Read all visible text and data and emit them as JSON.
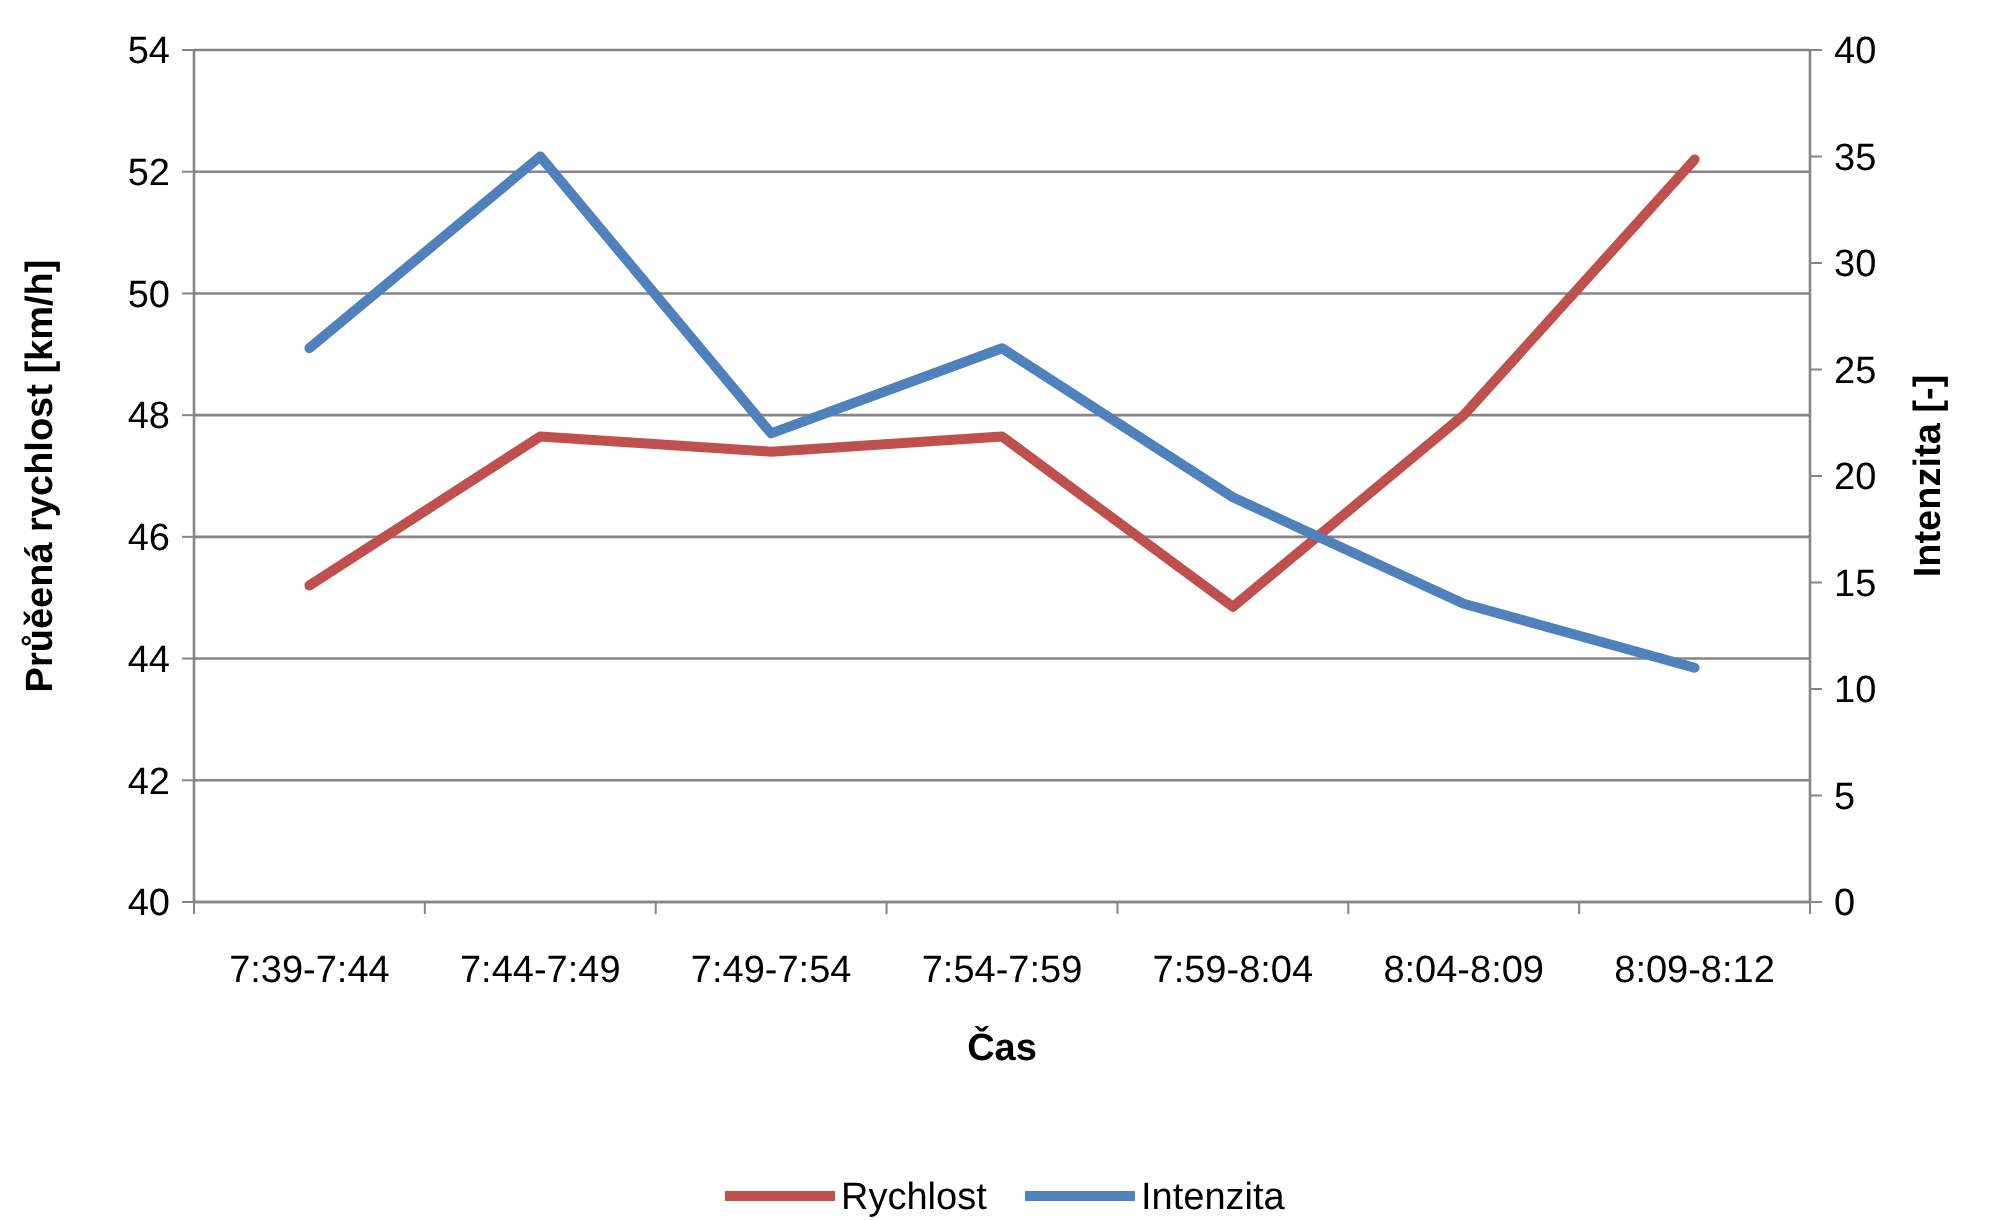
{
  "chart_data": {
    "type": "line",
    "xlabel": "Čas",
    "ylabel": "Průěená rychlost [km/h]",
    "y2label": "Intenzita [-]",
    "categories": [
      "7:39-7:44",
      "7:44-7:49",
      "7:49-7:54",
      "7:54-7:59",
      "7:59-8:04",
      "8:04-8:09",
      "8:09-8:12"
    ],
    "series": [
      {
        "name": "Rychlost",
        "color": "#c0504d",
        "values": [
          45.2,
          47.65,
          47.4,
          47.65,
          44.85,
          48.0,
          52.2
        ]
      },
      {
        "name": "Intenzita",
        "color": "#4f81bd",
        "axis": "y2",
        "values": [
          26,
          35,
          22,
          26,
          19,
          14,
          11
        ]
      }
    ],
    "ylim": [
      40,
      54
    ],
    "yticks": [
      40,
      42,
      44,
      46,
      48,
      50,
      52,
      54
    ],
    "y2lim": [
      0,
      40
    ],
    "y2ticks": [
      0,
      5,
      10,
      15,
      20,
      25,
      30,
      35,
      40
    ],
    "grid": "y",
    "legend": "bottom",
    "marker": "none",
    "line_style": "solid"
  }
}
